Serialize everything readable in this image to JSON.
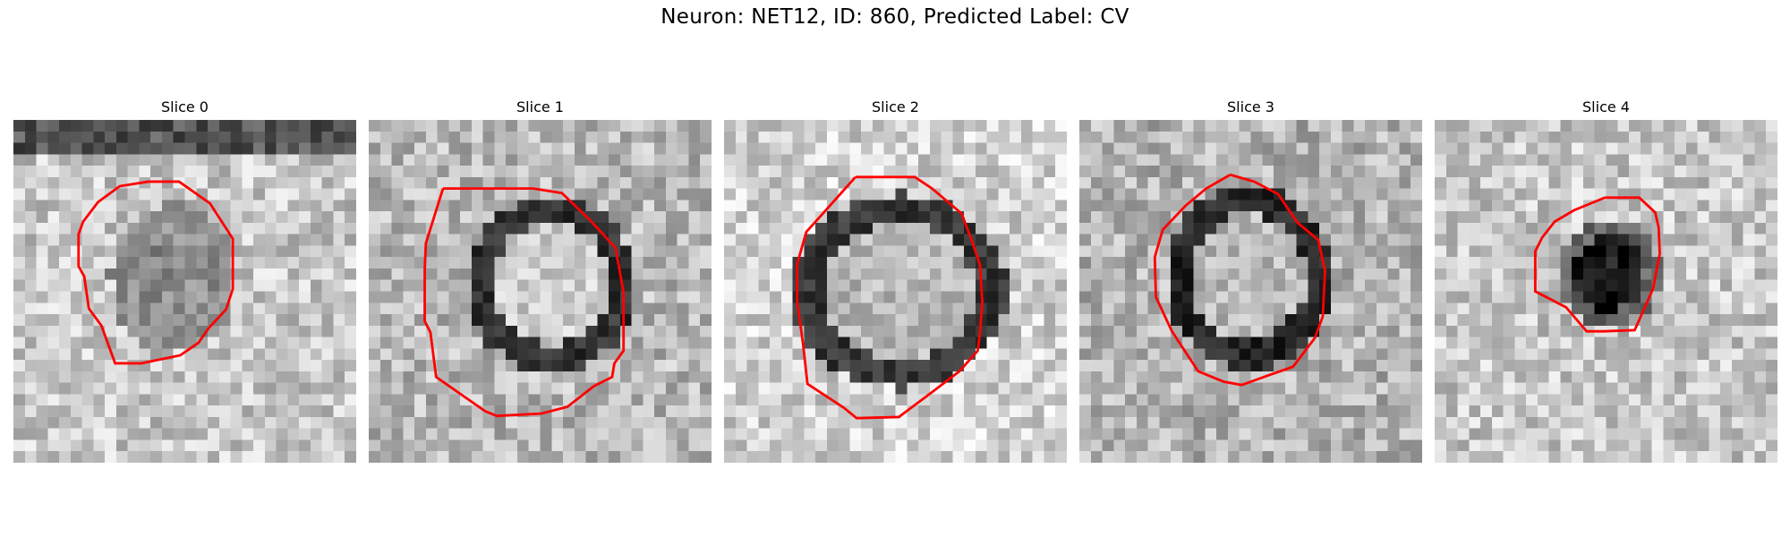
{
  "figure": {
    "title": "Neuron: NET12, ID: 860, Predicted Label: CV"
  },
  "panels": [
    {
      "title": "Slice 0",
      "image": "grayscale-microscopy-tile",
      "contour_color": "#ff0000"
    },
    {
      "title": "Slice 1",
      "image": "grayscale-microscopy-tile",
      "contour_color": "#ff0000"
    },
    {
      "title": "Slice 2",
      "image": "grayscale-microscopy-tile",
      "contour_color": "#ff0000"
    },
    {
      "title": "Slice 3",
      "image": "grayscale-microscopy-tile",
      "contour_color": "#ff0000"
    },
    {
      "title": "Slice 4",
      "image": "grayscale-microscopy-tile",
      "contour_color": "#ff0000"
    }
  ]
}
